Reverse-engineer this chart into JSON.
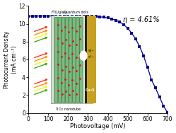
{
  "photovoltage": [
    0,
    20,
    40,
    60,
    80,
    100,
    120,
    140,
    160,
    180,
    200,
    220,
    240,
    260,
    280,
    300,
    320,
    340,
    360,
    380,
    400,
    420,
    440,
    460,
    480,
    500,
    520,
    540,
    560,
    580,
    600,
    620,
    640,
    660,
    680,
    700
  ],
  "photocurrent": [
    10.85,
    10.86,
    10.86,
    10.87,
    10.87,
    10.87,
    10.87,
    10.87,
    10.87,
    10.86,
    10.86,
    10.86,
    10.85,
    10.85,
    10.84,
    10.83,
    10.82,
    10.8,
    10.77,
    10.73,
    10.65,
    10.55,
    10.4,
    10.2,
    9.9,
    9.5,
    8.95,
    8.3,
    7.45,
    6.4,
    5.1,
    3.7,
    2.8,
    1.8,
    0.8,
    0.05
  ],
  "line_color": "#00008B",
  "marker_color": "#00008B",
  "xlabel": "Photovoltage (mV)",
  "ylabel": "Photocurrent Density\n(mA cm⁻²)",
  "xlim": [
    0,
    700
  ],
  "ylim": [
    0,
    12
  ],
  "yticks": [
    0,
    2,
    4,
    6,
    8,
    10,
    12
  ],
  "xticks": [
    0,
    100,
    200,
    300,
    400,
    500,
    600,
    700
  ],
  "eta_text": "η = 4.61%",
  "bg_color": "#ffffff",
  "tube_color": "#7dba84",
  "tube_edge": "#3a7a3a",
  "dot_color": "#dd1111",
  "fto_color": "#c8dfc8",
  "cu2s_color": "#c8a020",
  "cu2s_dark": "#8B6914",
  "black_sep": "#222222"
}
